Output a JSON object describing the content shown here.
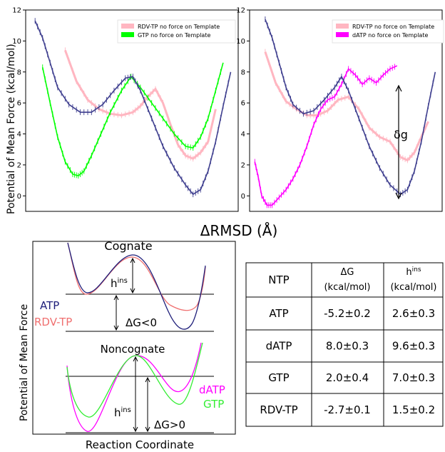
{
  "chart_data": [
    {
      "type": "line",
      "panel": "top-left",
      "ylabel": "Potential of Mean Force (kcal/mol)",
      "ylim": [
        -1,
        12
      ],
      "yticks": [
        0,
        2,
        4,
        6,
        8,
        10,
        12
      ],
      "legend_placement": "top-right",
      "series": [
        {
          "name": "RDV-TP no force on Template",
          "color": "#ffb6c1",
          "values": [
            [
              0.36,
              9.4
            ],
            [
              0.42,
              7.4
            ],
            [
              0.48,
              6.2
            ],
            [
              0.54,
              5.6
            ],
            [
              0.6,
              5.3
            ],
            [
              0.66,
              5.2
            ],
            [
              0.72,
              5.4
            ],
            [
              0.76,
              5.8
            ],
            [
              0.8,
              6.4
            ],
            [
              0.84,
              6.9
            ],
            [
              0.88,
              6.0
            ],
            [
              0.92,
              4.6
            ],
            [
              0.96,
              3.3
            ],
            [
              1.0,
              2.6
            ],
            [
              1.04,
              2.4
            ],
            [
              1.08,
              2.8
            ],
            [
              1.12,
              3.5
            ],
            [
              1.16,
              5.6
            ]
          ]
        },
        {
          "name": "GTP no force on Template",
          "color": "#00ff00",
          "values": [
            [
              0.24,
              8.3
            ],
            [
              0.28,
              6.0
            ],
            [
              0.32,
              3.8
            ],
            [
              0.36,
              2.2
            ],
            [
              0.4,
              1.4
            ],
            [
              0.43,
              1.3
            ],
            [
              0.46,
              1.6
            ],
            [
              0.5,
              2.6
            ],
            [
              0.55,
              4.0
            ],
            [
              0.6,
              5.4
            ],
            [
              0.66,
              6.8
            ],
            [
              0.71,
              7.7
            ],
            [
              0.76,
              7.0
            ],
            [
              0.82,
              6.0
            ],
            [
              0.88,
              5.0
            ],
            [
              0.94,
              4.0
            ],
            [
              1.0,
              3.2
            ],
            [
              1.04,
              3.1
            ],
            [
              1.08,
              3.8
            ],
            [
              1.12,
              5.0
            ],
            [
              1.16,
              6.8
            ],
            [
              1.2,
              8.6
            ]
          ]
        },
        {
          "name": "ATP",
          "color": "#3f3f8f",
          "values": [
            [
              0.2,
              11.3
            ],
            [
              0.24,
              10.2
            ],
            [
              0.28,
              8.6
            ],
            [
              0.32,
              7.0
            ],
            [
              0.38,
              5.9
            ],
            [
              0.44,
              5.4
            ],
            [
              0.5,
              5.4
            ],
            [
              0.56,
              5.9
            ],
            [
              0.62,
              6.8
            ],
            [
              0.68,
              7.6
            ],
            [
              0.72,
              7.7
            ],
            [
              0.76,
              6.8
            ],
            [
              0.82,
              5.0
            ],
            [
              0.88,
              3.2
            ],
            [
              0.94,
              1.8
            ],
            [
              1.0,
              0.7
            ],
            [
              1.04,
              0.1
            ],
            [
              1.08,
              0.4
            ],
            [
              1.12,
              1.6
            ],
            [
              1.16,
              3.5
            ],
            [
              1.2,
              5.8
            ],
            [
              1.24,
              8.0
            ]
          ]
        }
      ]
    },
    {
      "type": "line",
      "panel": "top-right",
      "ylim": [
        -1,
        12
      ],
      "yticks": [
        0,
        2,
        4,
        6,
        8,
        10,
        12
      ],
      "legend_placement": "top-right",
      "annotation": "δg",
      "series": [
        {
          "name": "RDV-TP no force on Template",
          "color": "#ffb6c1",
          "values": [
            [
              0.36,
              9.3
            ],
            [
              0.42,
              7.3
            ],
            [
              0.48,
              6.1
            ],
            [
              0.54,
              5.6
            ],
            [
              0.6,
              5.2
            ],
            [
              0.66,
              5.2
            ],
            [
              0.72,
              5.5
            ],
            [
              0.78,
              6.2
            ],
            [
              0.84,
              6.4
            ],
            [
              0.9,
              5.6
            ],
            [
              0.96,
              4.4
            ],
            [
              1.02,
              3.8
            ],
            [
              1.08,
              3.5
            ],
            [
              1.14,
              2.5
            ],
            [
              1.18,
              2.3
            ],
            [
              1.22,
              2.8
            ],
            [
              1.26,
              3.8
            ],
            [
              1.3,
              4.8
            ]
          ]
        },
        {
          "name": "dATP no force on Template",
          "color": "#ff00ff",
          "values": [
            [
              0.3,
              2.2
            ],
            [
              0.32,
              1.2
            ],
            [
              0.34,
              0.0
            ],
            [
              0.37,
              -0.6
            ],
            [
              0.4,
              -0.6
            ],
            [
              0.44,
              -0.1
            ],
            [
              0.48,
              0.4
            ],
            [
              0.52,
              1.1
            ],
            [
              0.56,
              2.0
            ],
            [
              0.6,
              3.2
            ],
            [
              0.64,
              4.6
            ],
            [
              0.68,
              5.6
            ],
            [
              0.72,
              6.2
            ],
            [
              0.76,
              6.4
            ],
            [
              0.8,
              7.2
            ],
            [
              0.84,
              8.2
            ],
            [
              0.88,
              7.8
            ],
            [
              0.92,
              7.2
            ],
            [
              0.96,
              7.6
            ],
            [
              1.0,
              7.3
            ],
            [
              1.04,
              7.8
            ],
            [
              1.08,
              8.2
            ],
            [
              1.12,
              8.4
            ]
          ]
        },
        {
          "name": "ATP",
          "color": "#3f3f8f",
          "values": [
            [
              0.36,
              11.4
            ],
            [
              0.4,
              10.2
            ],
            [
              0.44,
              8.6
            ],
            [
              0.48,
              7.0
            ],
            [
              0.52,
              5.9
            ],
            [
              0.58,
              5.3
            ],
            [
              0.64,
              5.5
            ],
            [
              0.7,
              6.2
            ],
            [
              0.76,
              7.0
            ],
            [
              0.8,
              7.7
            ],
            [
              0.84,
              6.8
            ],
            [
              0.9,
              5.0
            ],
            [
              0.96,
              3.2
            ],
            [
              1.02,
              1.8
            ],
            [
              1.08,
              0.7
            ],
            [
              1.14,
              0.1
            ],
            [
              1.18,
              0.4
            ],
            [
              1.22,
              1.6
            ],
            [
              1.26,
              3.5
            ],
            [
              1.3,
              5.8
            ],
            [
              1.34,
              8.0
            ]
          ]
        }
      ]
    }
  ],
  "shared_xlabel": "ΔRMSD (Å)",
  "schematic": {
    "ylabel": "Potential of Mean Force",
    "xlabel": "Reaction Coordinate",
    "cognate_label": "Cognate",
    "noncognate_label": "Noncognate",
    "atp_label": "ATP",
    "rdv_label": "RDV-TP",
    "datp_label": "dATP",
    "gtp_label": "GTP",
    "h_ins": "h",
    "h_ins_sup": "ins",
    "dg_lt": "ΔG<0",
    "dg_gt": "ΔG>0",
    "colors": {
      "atp": "#1f1f7a",
      "rdv": "#f07070",
      "datp": "#ff00ff",
      "gtp": "#33ee33"
    }
  },
  "table": {
    "headers": [
      {
        "main": "NTP",
        "sup": "",
        "sub": ""
      },
      {
        "main": "ΔG",
        "sup": "",
        "sub": "(kcal/mol)"
      },
      {
        "main": "h",
        "sup": "ins",
        "sub": "(kcal/mol)"
      }
    ],
    "rows": [
      [
        "ATP",
        "-5.2±0.2",
        "2.6±0.3"
      ],
      [
        "dATP",
        "8.0±0.3",
        "9.6±0.3"
      ],
      [
        "GTP",
        "2.0±0.4",
        "7.0±0.3"
      ],
      [
        "RDV-TP",
        "-2.7±0.1",
        "1.5±0.2"
      ]
    ]
  }
}
